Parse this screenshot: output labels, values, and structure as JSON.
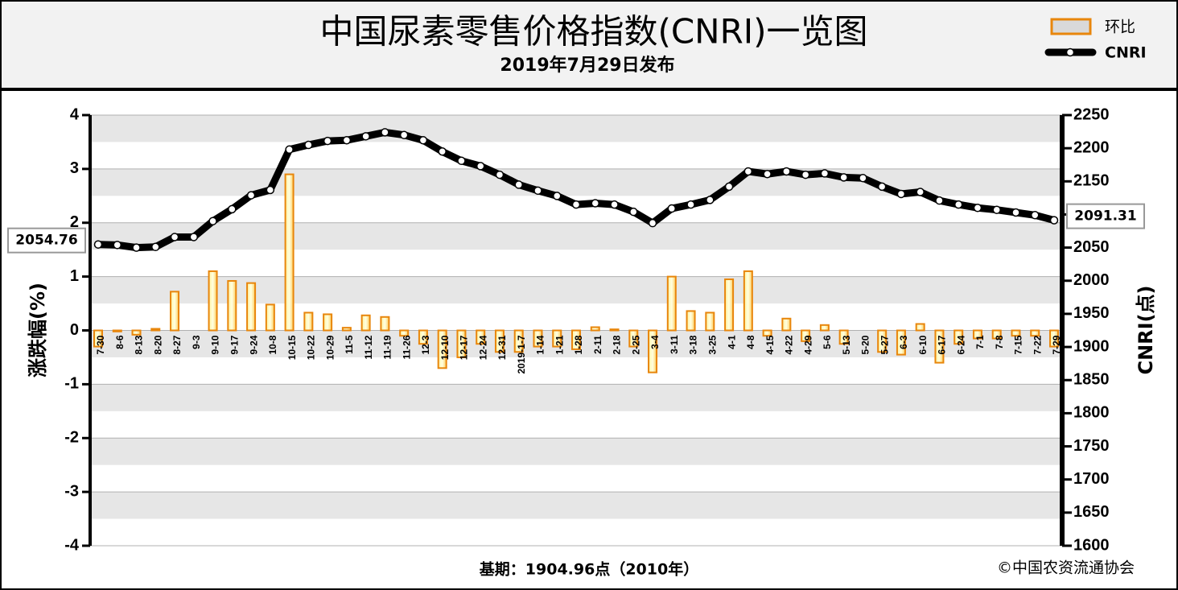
{
  "chart_data": {
    "type": "combo",
    "title": "中国尿素零售价格指数(CNRI)一览图",
    "subtitle": "2019年7月29日发布",
    "y_label": "涨跌幅(%)",
    "y2_label": "CNRI(点)",
    "footnote": "基期：1904.96点（2010年）",
    "source": "©中国农资流通协会",
    "categories": [
      "7-30",
      "8-6",
      "8-13",
      "8-20",
      "8-27",
      "9-3",
      "9-10",
      "9-17",
      "9-24",
      "10-8",
      "10-15",
      "10-22",
      "10-29",
      "11-5",
      "11-12",
      "11-19",
      "11-26",
      "12-3",
      "12-10",
      "12-17",
      "12-24",
      "12-31",
      "2019-1-7",
      "1-14",
      "1-21",
      "1-28",
      "2-11",
      "2-18",
      "2-25",
      "3-4",
      "3-11",
      "3-18",
      "3-25",
      "4-1",
      "4-8",
      "4-15",
      "4-22",
      "4-29",
      "5-6",
      "5-13",
      "5-20",
      "5-27",
      "6-3",
      "6-10",
      "6-17",
      "6-24",
      "7-1",
      "7-8",
      "7-15",
      "7-22",
      "7-29"
    ],
    "series": [
      {
        "name": "环比",
        "type": "bar",
        "color": "#e8860c",
        "values": [
          -0.3,
          -0.02,
          -0.08,
          0.03,
          0.72,
          0,
          1.1,
          0.92,
          0.88,
          0.48,
          2.9,
          0.33,
          0.3,
          0.05,
          0.28,
          0.25,
          -0.1,
          -0.25,
          -0.7,
          -0.5,
          -0.25,
          -0.4,
          -0.4,
          -0.3,
          -0.3,
          -0.35,
          0.06,
          0.02,
          -0.3,
          -0.78,
          1.0,
          0.36,
          0.33,
          0.95,
          1.1,
          -0.1,
          0.22,
          -0.2,
          0.1,
          -0.25,
          0,
          -0.4,
          -0.45,
          0.12,
          -0.6,
          -0.25,
          -0.15,
          -0.15,
          -0.1,
          -0.1,
          -0.3
        ]
      },
      {
        "name": "CNRI",
        "type": "line",
        "axis": "y2",
        "color": "#000000",
        "values": [
          2054.76,
          2054,
          2050,
          2051,
          2066,
          2066,
          2090,
          2108,
          2129,
          2137,
          2198,
          2205,
          2211,
          2212,
          2218,
          2224,
          2220,
          2212,
          2195,
          2181,
          2173,
          2160,
          2145,
          2136,
          2128,
          2115,
          2117,
          2115,
          2104,
          2087,
          2109,
          2115,
          2122,
          2142,
          2165,
          2161,
          2165,
          2160,
          2162,
          2156,
          2155,
          2142,
          2131,
          2134,
          2121,
          2115,
          2110,
          2107,
          2103,
          2099,
          2091.31
        ]
      }
    ],
    "ylim": [
      -4,
      4
    ],
    "yticks": [
      4,
      3,
      2,
      1,
      0,
      -1,
      -2,
      -3,
      -4
    ],
    "y2lim": [
      1600,
      2250
    ],
    "y2ticks": [
      2250,
      2200,
      2150,
      2100,
      2050,
      2000,
      1950,
      1900,
      1850,
      1800,
      1750,
      1700,
      1650,
      1600
    ],
    "grid": true
  }
}
